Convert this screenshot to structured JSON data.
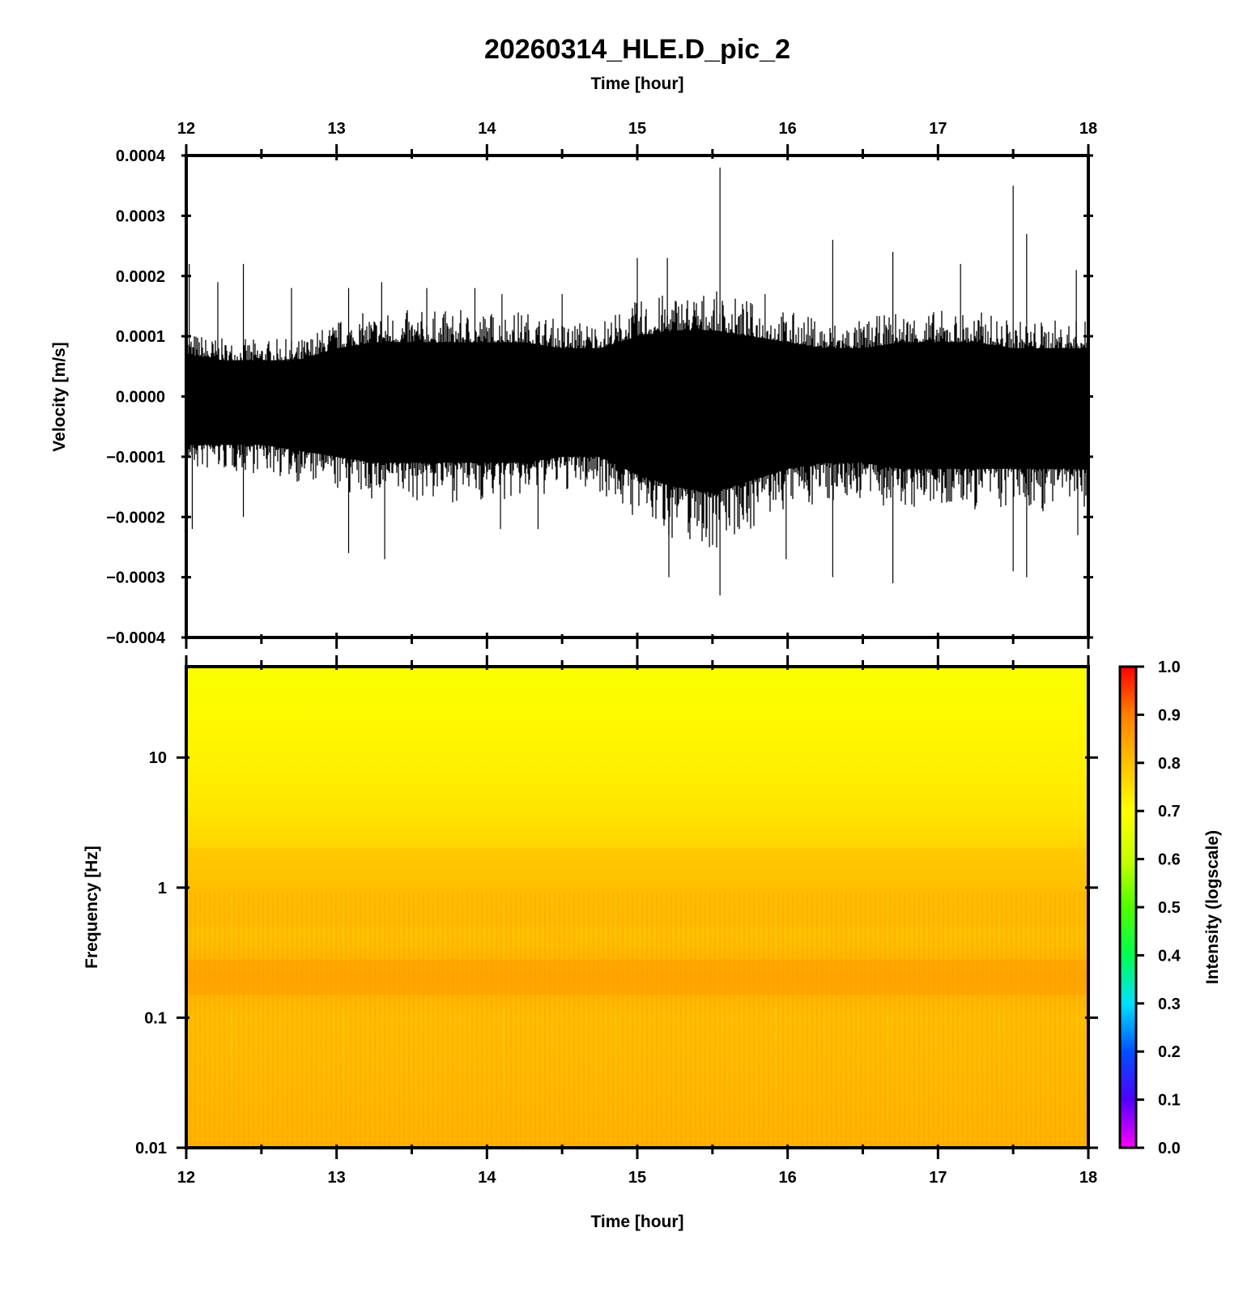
{
  "figure": {
    "title": "20260314_HLE.D_pic_2"
  },
  "chart_data": [
    {
      "type": "line",
      "panel": "waveform",
      "xlabel": "Time [hour]",
      "ylabel": "Velocity [m/s]",
      "xlim": [
        12,
        18
      ],
      "ylim": [
        -0.0004,
        0.0004
      ],
      "x_ticks": [
        "12",
        "13",
        "14",
        "15",
        "16",
        "17",
        "18"
      ],
      "y_ticks": [
        "0.0004",
        "0.0003",
        "0.0002",
        "0.0001",
        "0.0000",
        "−0.0001",
        "−0.0002",
        "−0.0003",
        "−0.0004"
      ],
      "line_color": "#000000",
      "series": [
        {
          "x": [
            12.0,
            12.25,
            12.5,
            12.75,
            13.0,
            13.25,
            13.5,
            13.75,
            14.0,
            14.25,
            14.5,
            14.75,
            15.0,
            15.25,
            15.5,
            15.75,
            16.0,
            16.25,
            16.5,
            16.75,
            17.0,
            17.25,
            17.5,
            17.75,
            18.0
          ],
          "envelope_upper": [
            7e-05,
            6e-05,
            6e-05,
            6e-05,
            8e-05,
            9e-05,
            9e-05,
            9e-05,
            9e-05,
            9e-05,
            8e-05,
            8e-05,
            0.0001,
            0.00011,
            0.00011,
            0.0001,
            9e-05,
            8e-05,
            8e-05,
            9e-05,
            9e-05,
            9e-05,
            8e-05,
            8e-05,
            8e-05
          ],
          "envelope_lower": [
            -8e-05,
            -8e-05,
            -8e-05,
            -9e-05,
            -0.0001,
            -0.00011,
            -0.00011,
            -0.00011,
            -0.00011,
            -0.00011,
            -0.0001,
            -0.0001,
            -0.00013,
            -0.00015,
            -0.00016,
            -0.00014,
            -0.00012,
            -0.00011,
            -0.00011,
            -0.00012,
            -0.00012,
            -0.00012,
            -0.00012,
            -0.00012,
            -0.00012
          ]
        }
      ],
      "spikes": [
        {
          "x": 12.02,
          "y": 0.00022
        },
        {
          "x": 12.38,
          "y": 0.00022
        },
        {
          "x": 12.21,
          "y": 0.00019
        },
        {
          "x": 12.7,
          "y": 0.00018
        },
        {
          "x": 13.08,
          "y": 0.00018
        },
        {
          "x": 13.3,
          "y": 0.00019
        },
        {
          "x": 13.6,
          "y": 0.00018
        },
        {
          "x": 13.92,
          "y": 0.00018
        },
        {
          "x": 14.1,
          "y": 0.00017
        },
        {
          "x": 14.5,
          "y": 0.00017
        },
        {
          "x": 15.0,
          "y": 0.00023
        },
        {
          "x": 15.2,
          "y": 0.00023
        },
        {
          "x": 15.55,
          "y": 0.00038
        },
        {
          "x": 15.85,
          "y": 0.00017
        },
        {
          "x": 16.3,
          "y": 0.00026
        },
        {
          "x": 16.7,
          "y": 0.00024
        },
        {
          "x": 17.15,
          "y": 0.00022
        },
        {
          "x": 17.5,
          "y": 0.00035
        },
        {
          "x": 17.59,
          "y": 0.00027
        },
        {
          "x": 17.92,
          "y": 0.00021
        },
        {
          "x": 12.04,
          "y": -0.00022
        },
        {
          "x": 12.38,
          "y": -0.0002
        },
        {
          "x": 13.08,
          "y": -0.00026
        },
        {
          "x": 13.32,
          "y": -0.00027
        },
        {
          "x": 14.09,
          "y": -0.00022
        },
        {
          "x": 14.34,
          "y": -0.00022
        },
        {
          "x": 15.21,
          "y": -0.0003
        },
        {
          "x": 15.48,
          "y": -0.00025
        },
        {
          "x": 15.55,
          "y": -0.00033
        },
        {
          "x": 15.99,
          "y": -0.00027
        },
        {
          "x": 16.3,
          "y": -0.0003
        },
        {
          "x": 16.7,
          "y": -0.00031
        },
        {
          "x": 17.5,
          "y": -0.00029
        },
        {
          "x": 17.59,
          "y": -0.0003
        },
        {
          "x": 17.93,
          "y": -0.00023
        }
      ]
    },
    {
      "type": "heatmap",
      "panel": "spectrogram",
      "xlabel": "Time [hour]",
      "ylabel": "Frequency [Hz]",
      "xlim": [
        12,
        18
      ],
      "ylim": [
        0.01,
        50
      ],
      "y_scale": "log",
      "x_ticks": [
        "12",
        "13",
        "14",
        "15",
        "16",
        "17",
        "18"
      ],
      "y_ticks": [
        "10",
        "1",
        "0.1",
        "0.01"
      ],
      "colorbar": {
        "label": "Intensity (logscale)",
        "range": [
          0.0,
          1.0
        ],
        "ticks": [
          "1.0",
          "0.9",
          "0.8",
          "0.7",
          "0.6",
          "0.5",
          "0.4",
          "0.3",
          "0.2",
          "0.1",
          "0.0"
        ],
        "colors": [
          "#ff00ff",
          "#5000ff",
          "#0050ff",
          "#00e0ff",
          "#00ff50",
          "#50ff00",
          "#c8ff00",
          "#ffff00",
          "#ffc000",
          "#ff8000",
          "#ff0000"
        ]
      },
      "intensity_by_frequency": [
        {
          "freq": 50,
          "intensity": 0.69
        },
        {
          "freq": 20,
          "intensity": 0.71
        },
        {
          "freq": 10,
          "intensity": 0.72
        },
        {
          "freq": 4,
          "intensity": 0.74
        },
        {
          "freq": 2,
          "intensity": 0.77
        },
        {
          "freq": 1,
          "intensity": 0.79
        },
        {
          "freq": 0.4,
          "intensity": 0.8
        },
        {
          "freq": 0.2,
          "intensity": 0.83
        },
        {
          "freq": 0.1,
          "intensity": 0.8
        },
        {
          "freq": 0.03,
          "intensity": 0.81
        },
        {
          "freq": 0.01,
          "intensity": 0.82
        }
      ]
    }
  ]
}
